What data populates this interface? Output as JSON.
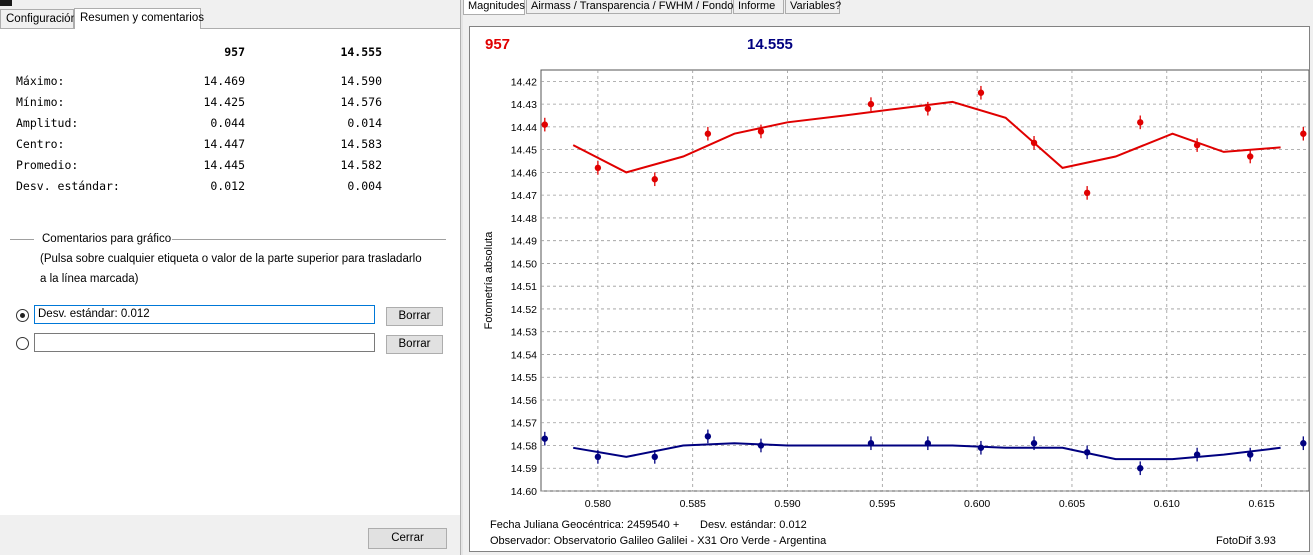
{
  "left": {
    "tabs": [
      {
        "label": "Configuración",
        "active": false
      },
      {
        "label": "Resumen y comentarios",
        "active": true
      }
    ],
    "summary": {
      "columns": [
        "957",
        "14.555"
      ],
      "rows": [
        {
          "label": "Máximo:",
          "v1": "14.469",
          "v2": "14.590"
        },
        {
          "label": "Mínimo:",
          "v1": "14.425",
          "v2": "14.576"
        },
        {
          "label": "Amplitud:",
          "v1": "0.044",
          "v2": "0.014"
        },
        {
          "label": "Centro:",
          "v1": "14.447",
          "v2": "14.583"
        },
        {
          "label": "Promedio:",
          "v1": "14.445",
          "v2": "14.582"
        },
        {
          "label": "Desv. estándar:",
          "v1": "0.012",
          "v2": "0.004"
        }
      ]
    },
    "comments": {
      "group_title": "Comentarios para gráfico",
      "hint_line1": "(Pulsa sobre cualquier etiqueta o valor de la parte superior para trasladarlo",
      "hint_line2": "a la línea marcada)",
      "line1_value": "Desv. estándar: 0.012",
      "line2_value": "",
      "clear_label": "Borrar"
    },
    "close_label": "Cerrar"
  },
  "right": {
    "tabs": [
      {
        "label": "Magnitudes",
        "active": true
      },
      {
        "label": "Airmass / Transparencia / FWHM / Fondo",
        "active": false
      },
      {
        "label": "Informe",
        "active": false
      },
      {
        "label": "Variables?",
        "active": false
      }
    ],
    "footer": {
      "jd_label": "Fecha Juliana Geocéntrica: 2459540  +",
      "comment": "Desv. estándar: 0.012",
      "observer": "Observador: Observatorio Galileo Galilei - X31 Oro Verde - Argentina",
      "version": "FotoDif 3.93"
    }
  },
  "chart_data": {
    "type": "scatter",
    "ylabel": "Fotometría absoluta",
    "xlim": [
      0.577,
      0.6175
    ],
    "ylim": [
      14.6,
      14.415
    ],
    "y_inverted": true,
    "x_ticks": [
      "0.580",
      "0.585",
      "0.590",
      "0.595",
      "0.600",
      "0.605",
      "0.610",
      "0.615"
    ],
    "y_ticks": [
      "14.42",
      "14.43",
      "14.44",
      "14.45",
      "14.46",
      "14.47",
      "14.48",
      "14.49",
      "14.50",
      "14.51",
      "14.52",
      "14.53",
      "14.54",
      "14.55",
      "14.56",
      "14.57",
      "14.58",
      "14.59",
      "14.60"
    ],
    "grid": true,
    "series": [
      {
        "name": "957",
        "color": "#e00000",
        "points": [
          [
            0.5772,
            14.439
          ],
          [
            0.58,
            14.458
          ],
          [
            0.583,
            14.463
          ],
          [
            0.5858,
            14.443
          ],
          [
            0.5886,
            14.442
          ],
          [
            0.5944,
            14.43
          ],
          [
            0.5974,
            14.432
          ],
          [
            0.6002,
            14.425
          ],
          [
            0.603,
            14.447
          ],
          [
            0.6058,
            14.469
          ],
          [
            0.6086,
            14.438
          ],
          [
            0.6116,
            14.448
          ],
          [
            0.6144,
            14.453
          ],
          [
            0.6172,
            14.443
          ]
        ],
        "err": 0.003,
        "fit": [
          [
            0.5787,
            14.448
          ],
          [
            0.5815,
            14.46
          ],
          [
            0.5845,
            14.453
          ],
          [
            0.5872,
            14.443
          ],
          [
            0.59,
            14.438
          ],
          [
            0.593,
            14.435
          ],
          [
            0.5958,
            14.432
          ],
          [
            0.5987,
            14.429
          ],
          [
            0.6015,
            14.436
          ],
          [
            0.6045,
            14.458
          ],
          [
            0.6073,
            14.453
          ],
          [
            0.6103,
            14.443
          ],
          [
            0.613,
            14.451
          ],
          [
            0.616,
            14.449
          ]
        ]
      },
      {
        "name": "14.555",
        "color": "#000080",
        "points": [
          [
            0.5772,
            14.577
          ],
          [
            0.58,
            14.585
          ],
          [
            0.583,
            14.585
          ],
          [
            0.5858,
            14.576
          ],
          [
            0.5886,
            14.58
          ],
          [
            0.5944,
            14.579
          ],
          [
            0.5974,
            14.579
          ],
          [
            0.6002,
            14.581
          ],
          [
            0.603,
            14.579
          ],
          [
            0.6058,
            14.583
          ],
          [
            0.6086,
            14.59
          ],
          [
            0.6116,
            14.584
          ],
          [
            0.6144,
            14.584
          ],
          [
            0.6172,
            14.579
          ]
        ],
        "err": 0.003,
        "fit": [
          [
            0.5787,
            14.581
          ],
          [
            0.5815,
            14.585
          ],
          [
            0.5845,
            14.58
          ],
          [
            0.5872,
            14.579
          ],
          [
            0.59,
            14.58
          ],
          [
            0.593,
            14.58
          ],
          [
            0.5958,
            14.58
          ],
          [
            0.5987,
            14.58
          ],
          [
            0.6015,
            14.581
          ],
          [
            0.6045,
            14.581
          ],
          [
            0.6073,
            14.586
          ],
          [
            0.6103,
            14.586
          ],
          [
            0.613,
            14.584
          ],
          [
            0.616,
            14.581
          ]
        ]
      }
    ]
  }
}
